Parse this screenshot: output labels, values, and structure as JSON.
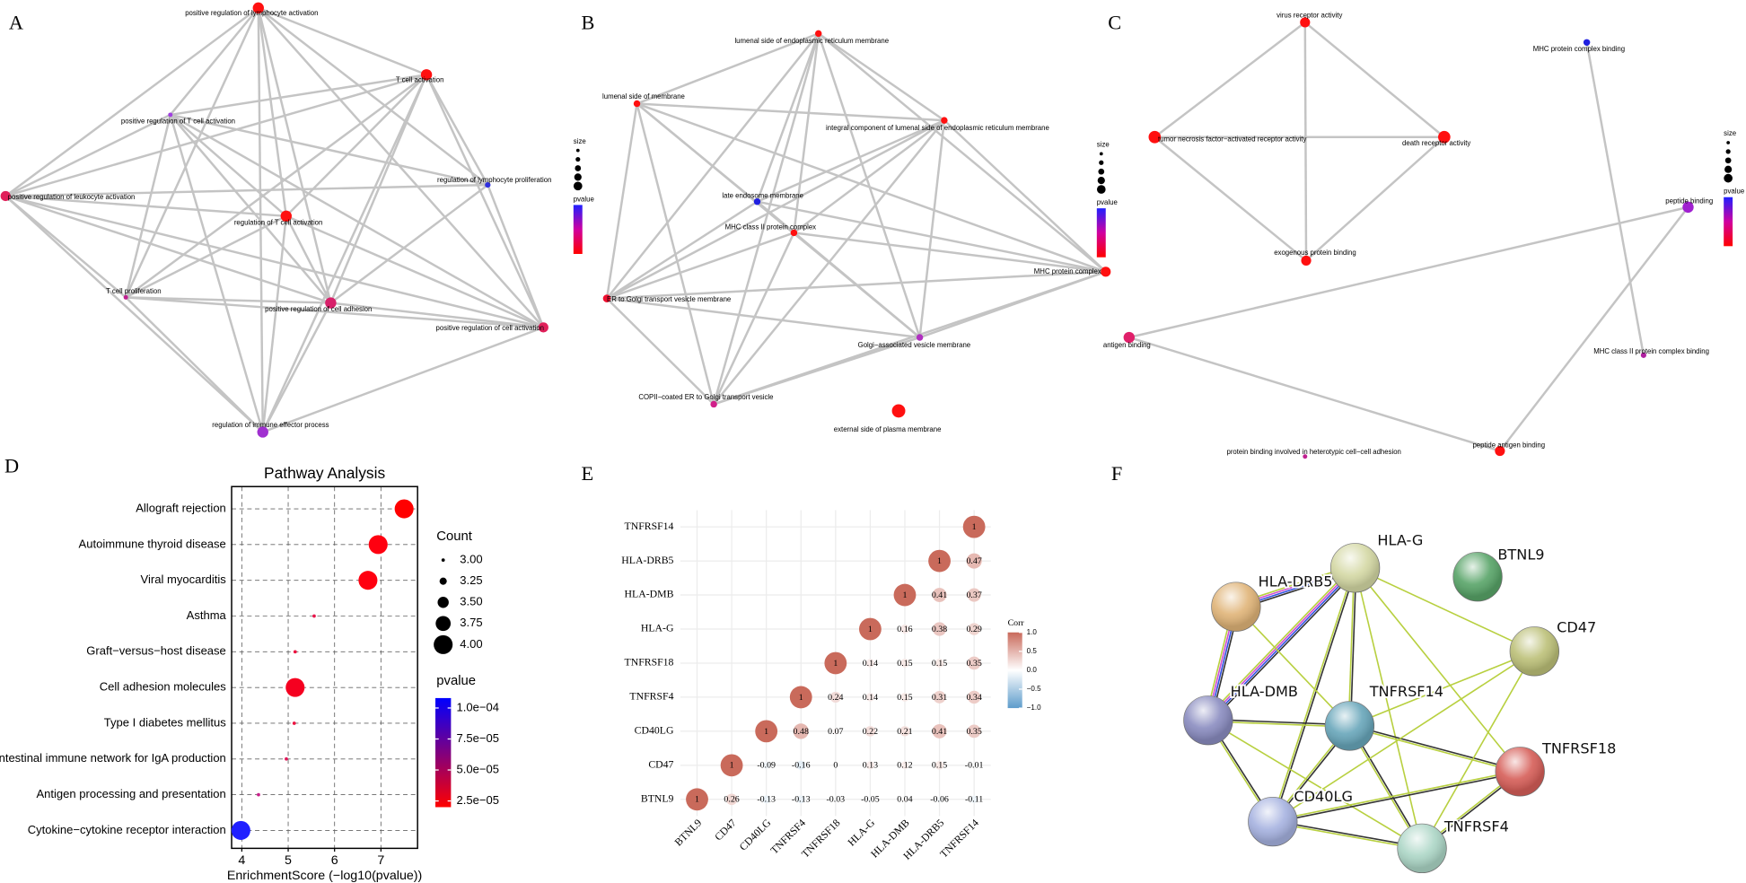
{
  "panel_labels": [
    "A",
    "B",
    "C",
    "D",
    "E",
    "F"
  ],
  "networks": [
    {
      "nodes": [
        {
          "label": "positive regulation of lymphocyte activation",
          "color": "#ff1010"
        },
        {
          "label": "T cell activation",
          "color": "#ff1010"
        },
        {
          "label": "positive regulation of T cell activation",
          "color": "#a040e0"
        },
        {
          "label": "regulation of lymphocyte proliferation",
          "color": "#3030e0"
        },
        {
          "label": "positive regulation of leukocyte activation",
          "color": "#e0205a"
        },
        {
          "label": "regulation of T cell activation",
          "color": "#ff1010"
        },
        {
          "label": "T cell proliferation",
          "color": "#c02090"
        },
        {
          "label": "positive regulation of cell adhesion",
          "color": "#d8206a"
        },
        {
          "label": "positive regulation of cell activation",
          "color": "#e0205a"
        },
        {
          "label": "regulation of immune effector process",
          "color": "#a030d0"
        }
      ],
      "edges": [
        [
          0,
          1
        ],
        [
          0,
          2
        ],
        [
          0,
          3
        ],
        [
          0,
          4
        ],
        [
          0,
          5
        ],
        [
          0,
          6
        ],
        [
          0,
          7
        ],
        [
          0,
          8
        ],
        [
          0,
          9
        ],
        [
          1,
          2
        ],
        [
          1,
          3
        ],
        [
          1,
          4
        ],
        [
          1,
          5
        ],
        [
          1,
          6
        ],
        [
          1,
          7
        ],
        [
          1,
          8
        ],
        [
          1,
          9
        ],
        [
          2,
          3
        ],
        [
          2,
          4
        ],
        [
          2,
          5
        ],
        [
          2,
          6
        ],
        [
          2,
          7
        ],
        [
          2,
          8
        ],
        [
          2,
          9
        ],
        [
          3,
          4
        ],
        [
          3,
          7
        ],
        [
          3,
          8
        ],
        [
          4,
          5
        ],
        [
          4,
          6
        ],
        [
          4,
          7
        ],
        [
          4,
          8
        ],
        [
          4,
          9
        ],
        [
          5,
          6
        ],
        [
          5,
          7
        ],
        [
          5,
          8
        ],
        [
          5,
          9
        ],
        [
          6,
          7
        ],
        [
          6,
          8
        ],
        [
          6,
          9
        ],
        [
          7,
          8
        ],
        [
          7,
          9
        ],
        [
          8,
          9
        ]
      ],
      "legend": {
        "size_title": "size",
        "pvalue_title": "pvalue"
      }
    },
    {
      "nodes": [
        {
          "label": "lumenal side of endoplasmic reticulum membrane",
          "color": "#ff1010"
        },
        {
          "label": "lumenal side of membrane",
          "color": "#ff1010"
        },
        {
          "label": "integral component of lumenal side of endoplasmic reticulum membrane",
          "color": "#ff1010"
        },
        {
          "label": "late endosome membrane",
          "color": "#2020e0"
        },
        {
          "label": "MHC class II protein complex",
          "color": "#ff1010"
        },
        {
          "label": "MHC protein complex",
          "color": "#ff1010"
        },
        {
          "label": "ER to Golgi transport vesicle membrane",
          "color": "#f01030"
        },
        {
          "label": "Golgi−associated vesicle membrane",
          "color": "#b030c0"
        },
        {
          "label": "COPII−coated ER to Golgi transport vesicle",
          "color": "#d0208a"
        },
        {
          "label": "external side of plasma membrane",
          "color": "#ff1010"
        }
      ],
      "edges": [
        [
          0,
          1
        ],
        [
          0,
          2
        ],
        [
          0,
          3
        ],
        [
          0,
          4
        ],
        [
          0,
          5
        ],
        [
          0,
          6
        ],
        [
          0,
          7
        ],
        [
          0,
          8
        ],
        [
          1,
          2
        ],
        [
          1,
          4
        ],
        [
          1,
          5
        ],
        [
          1,
          6
        ],
        [
          1,
          7
        ],
        [
          1,
          8
        ],
        [
          2,
          3
        ],
        [
          2,
          4
        ],
        [
          2,
          5
        ],
        [
          2,
          6
        ],
        [
          2,
          7
        ],
        [
          2,
          8
        ],
        [
          3,
          5
        ],
        [
          3,
          6
        ],
        [
          3,
          7
        ],
        [
          4,
          5
        ],
        [
          4,
          6
        ],
        [
          4,
          7
        ],
        [
          4,
          8
        ],
        [
          5,
          6
        ],
        [
          5,
          7
        ],
        [
          5,
          8
        ],
        [
          6,
          7
        ],
        [
          6,
          8
        ],
        [
          7,
          8
        ]
      ],
      "legend": {
        "size_title": "size",
        "pvalue_title": "pvalue"
      }
    },
    {
      "nodes": [
        {
          "label": "virus receptor activity",
          "color": "#ff1010"
        },
        {
          "label": "tumor necrosis factor−activated receptor activity",
          "color": "#ff1010"
        },
        {
          "label": "death receptor activity",
          "color": "#ff1010"
        },
        {
          "label": "exogenous protein binding",
          "color": "#ff1010"
        },
        {
          "label": "MHC protein complex binding",
          "color": "#2020e0"
        },
        {
          "label": "peptide binding",
          "color": "#a020d0"
        },
        {
          "label": "antigen binding",
          "color": "#e0206a"
        },
        {
          "label": "MHC class II protein complex binding",
          "color": "#b020a0"
        },
        {
          "label": "peptide antigen binding",
          "color": "#ff1010"
        },
        {
          "label": "protein binding involved in heterotypic cell−cell adhesion",
          "color": "#c02090"
        }
      ],
      "edges": [
        [
          0,
          1
        ],
        [
          0,
          2
        ],
        [
          0,
          3
        ],
        [
          1,
          2
        ],
        [
          1,
          3
        ],
        [
          2,
          3
        ],
        [
          4,
          7
        ],
        [
          5,
          6
        ],
        [
          6,
          8
        ],
        [
          8,
          5
        ]
      ],
      "legend": {
        "size_title": "size",
        "pvalue_title": "pvalue"
      }
    }
  ],
  "chart_data": [
    {
      "type": "dot",
      "title": "Pathway Analysis",
      "x_label": "EnrichmentScore (−log10(pvalue))",
      "categories": [
        "Allograft rejection",
        "Autoimmune thyroid disease",
        "Viral myocarditis",
        "Asthma",
        "Graft−versus−host disease",
        "Cell adhesion molecules",
        "Type I diabetes mellitus",
        "Intestinal immune network for IgA production",
        "Antigen processing and presentation",
        "Cytokine−cytokine receptor interaction"
      ],
      "values": [
        7.5,
        6.94,
        6.72,
        5.56,
        5.15,
        5.15,
        5.13,
        4.96,
        4.36,
        3.98
      ],
      "sizes": [
        4,
        4,
        4,
        3,
        3,
        4,
        3,
        3,
        3,
        4
      ],
      "colors": [
        "#ff0000",
        "#ff0010",
        "#ff0010",
        "#e8154a",
        "#ec1240",
        "#f50020",
        "#ec1240",
        "#e0185a",
        "#c8208a",
        "#2020ff"
      ],
      "xlim": [
        3.78,
        7.79
      ],
      "xticks": [
        4,
        5,
        6,
        7
      ],
      "grid": true,
      "size_legend": {
        "title": "Count",
        "ticks": [
          {
            "value": 3,
            "label": "3.00"
          },
          3.25,
          {
            "value": 3.5,
            "label": "3.50"
          },
          3.75,
          {
            "value": 4,
            "label": "4.00"
          }
        ]
      },
      "color_legend": {
        "title": "pvalue",
        "lim": [
          2e-05,
          0.000108
        ],
        "colors": [
          "#ff0000",
          "#0000ff"
        ],
        "ticks": [
          {
            "value": 0.0001,
            "label": "1.0e−04"
          },
          {
            "value": 7.5e-05,
            "label": "7.5e−05"
          },
          {
            "value": 5e-05,
            "label": "5.0e−05"
          },
          {
            "value": 2.5e-05,
            "label": "2.5e−05"
          }
        ]
      }
    },
    {
      "type": "correlation",
      "genes": [
        "BTNL9",
        "CD47",
        "CD40LG",
        "TNFRSF4",
        "TNFRSF18",
        "HLA-G",
        "HLA-DMB",
        "HLA-DRB5",
        "TNFRSF14"
      ],
      "matrix": [
        [
          1,
          0.26,
          -0.13,
          -0.13,
          -0.03,
          -0.05,
          0.04,
          -0.06,
          -0.11
        ],
        [
          null,
          1,
          -0.09,
          -0.16,
          0,
          0.13,
          0.12,
          0.15,
          -0.01
        ],
        [
          null,
          null,
          1,
          0.48,
          0.07,
          0.22,
          0.21,
          0.41,
          0.35
        ],
        [
          null,
          null,
          null,
          1,
          0.24,
          0.14,
          0.15,
          0.31,
          0.34
        ],
        [
          null,
          null,
          null,
          null,
          1,
          0.14,
          0.15,
          0.15,
          0.35
        ],
        [
          null,
          null,
          null,
          null,
          null,
          1,
          0.16,
          0.38,
          0.29
        ],
        [
          null,
          null,
          null,
          null,
          null,
          null,
          1,
          0.41,
          0.37
        ],
        [
          null,
          null,
          null,
          null,
          null,
          null,
          null,
          1,
          0.47
        ],
        [
          null,
          null,
          null,
          null,
          null,
          null,
          null,
          null,
          1
        ]
      ],
      "legend": {
        "title": "Corr",
        "lim": [
          -1,
          1
        ],
        "colors": [
          "#5e9ccb",
          "#ffffff",
          "#c96a5b"
        ],
        "ticks": [
          {
            "value": 1,
            "label": "1.0"
          },
          0.5,
          {
            "value": 0,
            "label": "0.0"
          },
          {
            "value": -0.5,
            "label": "−0.5"
          },
          {
            "value": -1,
            "label": "−1.0"
          }
        ]
      }
    }
  ],
  "string_network": {
    "nodes": [
      {
        "label": "HLA-G",
        "color": "#d4d8a4"
      },
      {
        "label": "BTNL9",
        "color": "#58a468"
      },
      {
        "label": "HLA-DRB5",
        "color": "#e0b478"
      },
      {
        "label": "CD47",
        "color": "#bcc078"
      },
      {
        "label": "HLA-DMB",
        "color": "#8a8cc0"
      },
      {
        "label": "TNFRSF14",
        "color": "#68a6ba"
      },
      {
        "label": "TNFRSF18",
        "color": "#d65e58"
      },
      {
        "label": "CD40LG",
        "color": "#a6b2e0"
      },
      {
        "label": "TNFRSF4",
        "color": "#acd6c6"
      }
    ],
    "edges": [
      [
        0,
        2
      ],
      [
        0,
        4
      ],
      [
        2,
        4
      ],
      [
        0,
        5
      ],
      [
        0,
        7
      ],
      [
        0,
        6
      ],
      [
        0,
        8
      ],
      [
        0,
        3
      ],
      [
        4,
        5
      ],
      [
        4,
        7
      ],
      [
        4,
        8
      ],
      [
        5,
        7
      ],
      [
        5,
        6
      ],
      [
        5,
        8
      ],
      [
        5,
        3
      ],
      [
        3,
        7
      ],
      [
        3,
        8
      ],
      [
        6,
        7
      ],
      [
        6,
        8
      ],
      [
        7,
        8
      ],
      [
        2,
        5
      ]
    ]
  }
}
